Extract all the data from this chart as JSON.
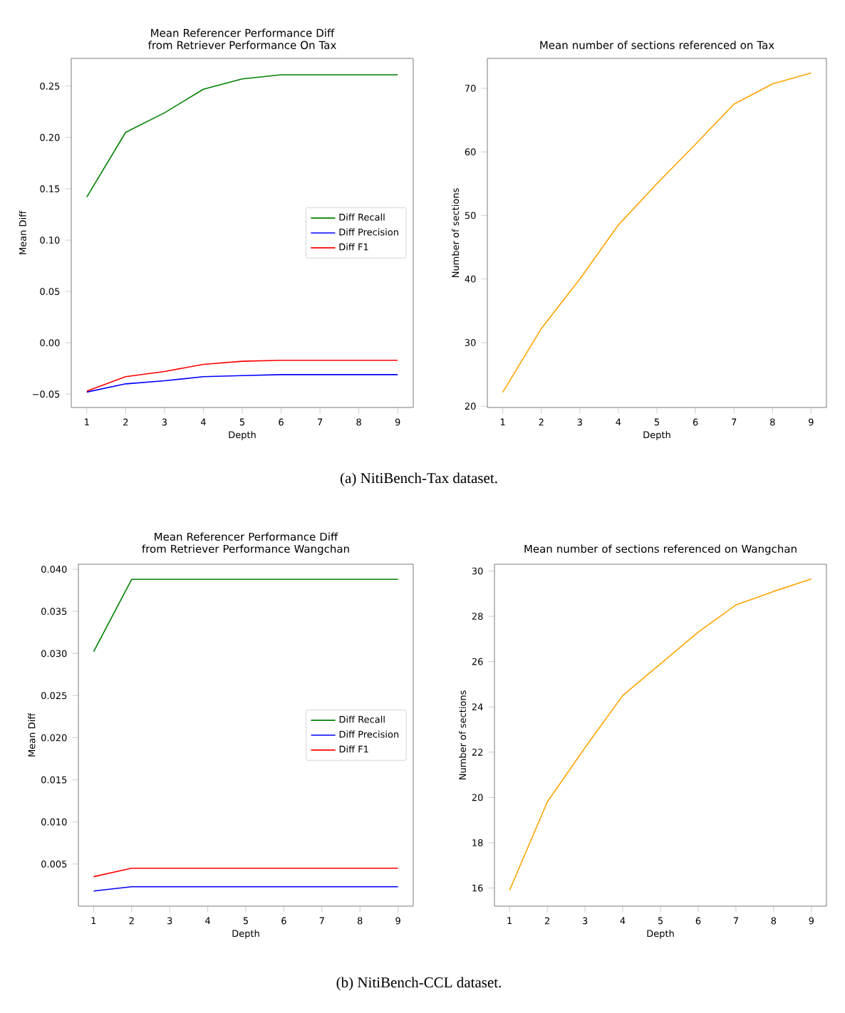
{
  "chart_data": [
    {
      "type": "line",
      "title": "Mean Referencer Performance Diff from Retriever Performance On Tax",
      "xlabel": "Depth",
      "ylabel": "Mean Diff",
      "x": [
        1,
        2,
        3,
        4,
        5,
        6,
        7,
        8,
        9
      ],
      "series": [
        {
          "name": "Diff Recall",
          "color": "#008000",
          "values": [
            0.142,
            0.205,
            0.224,
            0.247,
            0.257,
            0.261,
            0.261,
            0.261,
            0.261
          ]
        },
        {
          "name": "Diff Precision",
          "color": "#0000ff",
          "values": [
            -0.048,
            -0.04,
            -0.037,
            -0.033,
            -0.032,
            -0.031,
            -0.031,
            -0.031,
            -0.031
          ]
        },
        {
          "name": "Diff F1",
          "color": "#ff0000",
          "values": [
            -0.047,
            -0.033,
            -0.028,
            -0.021,
            -0.018,
            -0.017,
            -0.017,
            -0.017,
            -0.017
          ]
        }
      ],
      "xlim": [
        0.6,
        9.4
      ],
      "xticks": [
        1,
        2,
        3,
        4,
        5,
        6,
        7,
        8,
        9
      ],
      "ylim": [
        -0.063,
        0.277
      ],
      "yticks": [
        {
          "value": -0.05,
          "label": "−0.05"
        },
        "0.00",
        0.05,
        "0.10",
        0.15,
        "0.20",
        0.25
      ],
      "legend": "right",
      "annotations": [
        "(a) NitiBench-Tax dataset."
      ]
    },
    {
      "type": "line",
      "title": "Mean number of sections referenced on Tax",
      "xlabel": "Depth",
      "ylabel": "Number of sections",
      "x": [
        1,
        2,
        3,
        4,
        5,
        6,
        7,
        8,
        9
      ],
      "series": [
        {
          "color": "#ffa500",
          "values": [
            22.2,
            32.2,
            40,
            48.5,
            55,
            61.2,
            67.5,
            70.7,
            72.4
          ]
        }
      ],
      "xlim": [
        0.6,
        9.4
      ],
      "xticks": [
        1,
        2,
        3,
        4,
        5,
        6,
        7,
        8,
        9
      ],
      "ylim": [
        19.8,
        74.7
      ],
      "yticks": [
        20,
        30,
        40,
        50,
        60,
        70
      ]
    },
    {
      "type": "line",
      "title": "Mean Referencer Performance Diff from Retriever Performance Wangchan",
      "xlabel": "Depth",
      "ylabel": "Mean Diff",
      "x": [
        1,
        2,
        3,
        4,
        5,
        6,
        7,
        8,
        9
      ],
      "series": [
        {
          "name": "Diff Recall",
          "color": "#008000",
          "values": [
            0.0302,
            0.0388,
            0.0388,
            0.0388,
            0.0388,
            0.0388,
            0.0388,
            0.0388,
            0.0388
          ]
        },
        {
          "name": "Diff Precision",
          "color": "#0000ff",
          "values": [
            0.0018,
            0.0023,
            0.0023,
            0.0023,
            0.0023,
            0.0023,
            0.0023,
            0.0023,
            0.0023
          ]
        },
        {
          "name": "Diff F1",
          "color": "#ff0000",
          "values": [
            0.0035,
            0.0045,
            0.0045,
            0.0045,
            0.0045,
            0.0045,
            0.0045,
            0.0045,
            0.0045
          ]
        }
      ],
      "xlim": [
        0.6,
        9.4
      ],
      "xticks": [
        1,
        2,
        3,
        4,
        5,
        6,
        7,
        8,
        9
      ],
      "ylim": [
        0.0,
        0.0406
      ],
      "yticks": [
        {
          "value": 0.005,
          "label": "0.005"
        },
        {
          "value": 0.01,
          "label": "0.010"
        },
        0.015,
        {
          "value": 0.02,
          "label": "0.020"
        },
        0.025,
        {
          "value": 0.03,
          "label": "0.030"
        },
        0.035,
        {
          "value": 0.04,
          "label": "0.040"
        }
      ],
      "legend": "right",
      "annotations": [
        "(b) NitiBench-CCL  dataset."
      ]
    },
    {
      "type": "line",
      "title": "Mean number of sections referenced on Wangchan",
      "xlabel": "Depth",
      "ylabel": "Number of sections",
      "x": [
        1,
        2,
        3,
        4,
        5,
        6,
        7,
        8,
        9
      ],
      "series": [
        {
          "color": "#ffa500",
          "values": [
            15.9,
            19.8,
            22.2,
            24.5,
            25.9,
            27.3,
            28.5,
            29.1,
            29.65
          ]
        }
      ],
      "xlim": [
        0.6,
        9.4
      ],
      "xticks": [
        1,
        2,
        3,
        4,
        5,
        6,
        7,
        8,
        9
      ],
      "ylim": [
        15.2,
        30.3
      ],
      "yticks": [
        16,
        18,
        20,
        22,
        24,
        26,
        28,
        30
      ]
    }
  ]
}
